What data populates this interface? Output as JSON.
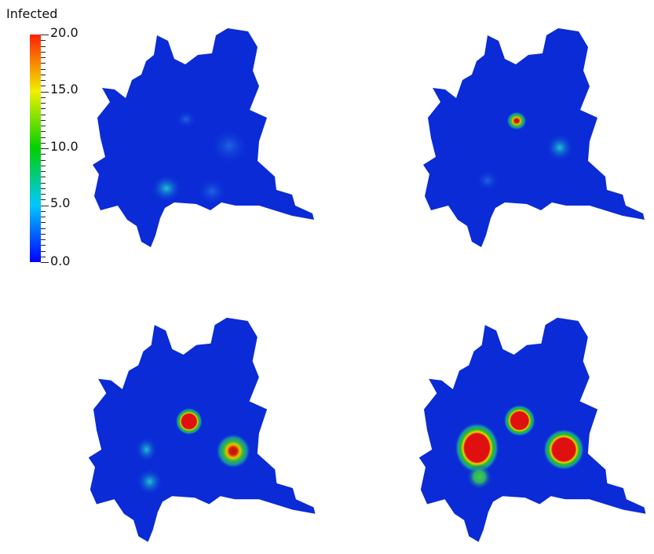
{
  "legend": {
    "title": "Infected",
    "labels": [
      "20.0",
      "15.0",
      "10.0",
      "5.0",
      "0.0"
    ],
    "min": 0.0,
    "max": 20.0,
    "colors": [
      "#0000ff",
      "#00c8ff",
      "#00d000",
      "#f0f000",
      "#ff2000"
    ]
  },
  "map_color": "#0a2bd6"
}
